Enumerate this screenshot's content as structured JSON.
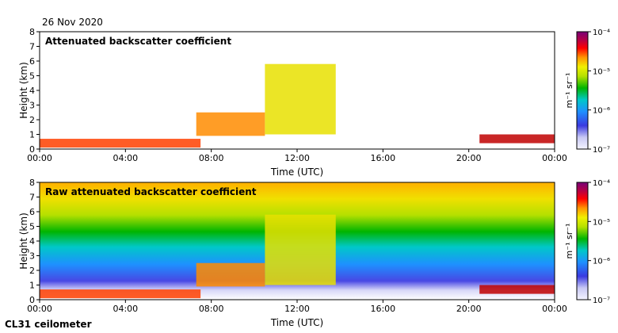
{
  "header": {
    "date": "26 Nov 2020"
  },
  "footer": {
    "instrument": "CL31 ceilometer"
  },
  "colors": {
    "frame": "#000000",
    "background": "#ffffff"
  },
  "chart_data": [
    {
      "type": "heatmap",
      "title": "Attenuated backscatter coefficient",
      "xlabel": "Time (UTC)",
      "ylabel": "Height (km)",
      "xlim": [
        "00:00",
        "24:00"
      ],
      "ylim": [
        0,
        8
      ],
      "x_ticks": [
        "00:00",
        "04:00",
        "08:00",
        "12:00",
        "16:00",
        "20:00",
        "00:00"
      ],
      "y_ticks": [
        "0",
        "1",
        "2",
        "3",
        "4",
        "5",
        "6",
        "7",
        "8"
      ],
      "colorbar": {
        "label": "m⁻¹ sr⁻¹",
        "scale": "log",
        "min": 1e-07,
        "max": 0.0001,
        "ticks": [
          "10⁻⁴",
          "10⁻⁵",
          "10⁻⁶",
          "10⁻⁷"
        ]
      },
      "features": [
        {
          "feature": "boundary layer aerosol",
          "time_start": 0,
          "time_end": 7.5,
          "height_base_km": 0.1,
          "height_top_km": 0.7
        },
        {
          "feature": "cloud layer",
          "time_start": 7.3,
          "time_end": 10.5,
          "height_base_km": 0.9,
          "height_top_km": 2.5
        },
        {
          "feature": "rising cloud",
          "time_start": 10.5,
          "time_end": 13.8,
          "height_base_km": 1.0,
          "height_top_km": 5.8
        },
        {
          "feature": "low cloud",
          "time_start": 20.5,
          "time_end": 24,
          "height_base_km": 0.4,
          "height_top_km": 1.0
        }
      ]
    },
    {
      "type": "heatmap",
      "title": "Raw attenuated backscatter coefficient",
      "xlabel": "Time (UTC)",
      "ylabel": "Height (km)",
      "xlim": [
        "00:00",
        "24:00"
      ],
      "ylim": [
        0,
        8
      ],
      "x_ticks": [
        "00:00",
        "04:00",
        "08:00",
        "12:00",
        "16:00",
        "20:00",
        "00:00"
      ],
      "y_ticks": [
        "0",
        "1",
        "2",
        "3",
        "4",
        "5",
        "6",
        "7",
        "8"
      ],
      "colorbar": {
        "label": "m⁻¹ sr⁻¹",
        "scale": "log",
        "min": 1e-07,
        "max": 0.0001,
        "ticks": [
          "10⁻⁴",
          "10⁻⁵",
          "10⁻⁶",
          "10⁻⁷"
        ]
      }
    }
  ]
}
